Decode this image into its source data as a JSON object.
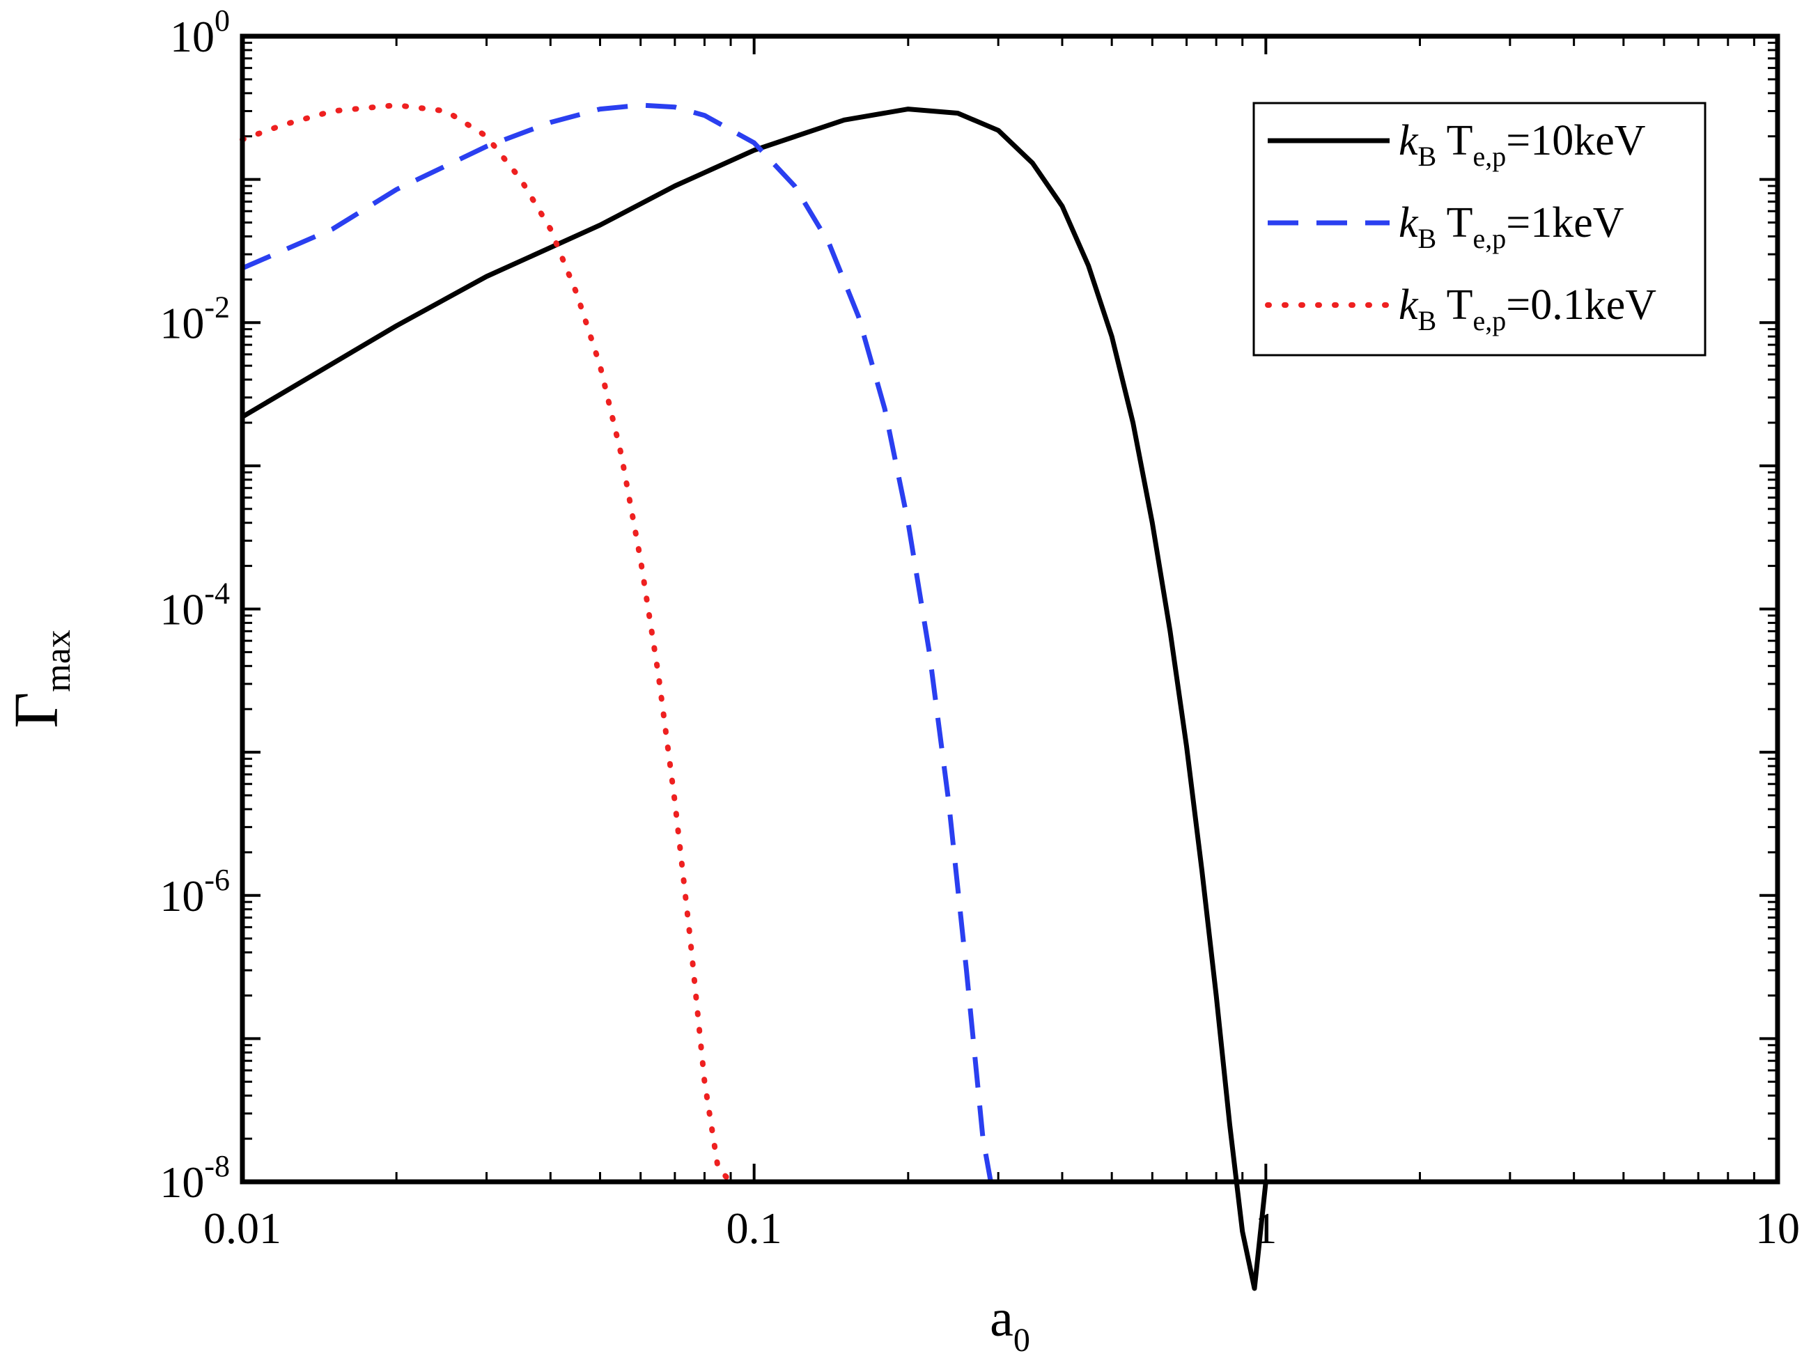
{
  "chart_data": {
    "type": "line",
    "xscale": "log",
    "yscale": "log",
    "xlim": [
      0.01,
      10
    ],
    "ylim": [
      1e-08,
      1
    ],
    "x_ticks": [
      "0.01",
      "0.1",
      "1",
      "10"
    ],
    "y_ticks": [
      {
        "base": "10",
        "exp": "0"
      },
      {
        "base": "10",
        "exp": "-2"
      },
      {
        "base": "10",
        "exp": "-4"
      },
      {
        "base": "10",
        "exp": "-6"
      },
      {
        "base": "10",
        "exp": "-8"
      }
    ],
    "xlabel": {
      "main": "a",
      "sub": "0"
    },
    "ylabel": {
      "main": "Γ",
      "sub": "max"
    },
    "legend_position": "top-right",
    "grid": false,
    "series": [
      {
        "name": "k_B T_e,p =10keV",
        "legend": {
          "k": "k",
          "k_sub": "B",
          "t": " T",
          "t_sub": "e,p",
          "rest": "=10keV"
        },
        "color": "#000000",
        "style": "solid",
        "points": [
          [
            0.01,
            0.0022
          ],
          [
            0.02,
            0.0095
          ],
          [
            0.03,
            0.021
          ],
          [
            0.05,
            0.048
          ],
          [
            0.07,
            0.09
          ],
          [
            0.1,
            0.16
          ],
          [
            0.15,
            0.26
          ],
          [
            0.2,
            0.31
          ],
          [
            0.25,
            0.29
          ],
          [
            0.3,
            0.22
          ],
          [
            0.35,
            0.13
          ],
          [
            0.4,
            0.065
          ],
          [
            0.45,
            0.025
          ],
          [
            0.5,
            0.008
          ],
          [
            0.55,
            0.002
          ],
          [
            0.6,
            0.0004
          ],
          [
            0.65,
            7e-05
          ],
          [
            0.7,
            1.1e-05
          ],
          [
            0.75,
            1.5e-06
          ],
          [
            0.8,
            2e-07
          ],
          [
            0.85,
            2.5e-08
          ],
          [
            0.9,
            4.5e-09
          ],
          [
            0.95,
            1.8e-09
          ],
          [
            1.0,
            1e-08
          ]
        ]
      },
      {
        "name": "k_B T_e,p =1keV",
        "legend": {
          "k": "k",
          "k_sub": "B",
          "t": " T",
          "t_sub": "e,p",
          "rest": "=1keV"
        },
        "color": "#2a3ff0",
        "style": "dashed",
        "points": [
          [
            0.01,
            0.024
          ],
          [
            0.015,
            0.045
          ],
          [
            0.02,
            0.085
          ],
          [
            0.03,
            0.17
          ],
          [
            0.04,
            0.25
          ],
          [
            0.05,
            0.31
          ],
          [
            0.06,
            0.33
          ],
          [
            0.07,
            0.32
          ],
          [
            0.08,
            0.28
          ],
          [
            0.1,
            0.18
          ],
          [
            0.12,
            0.09
          ],
          [
            0.14,
            0.036
          ],
          [
            0.16,
            0.011
          ],
          [
            0.18,
            0.0025
          ],
          [
            0.2,
            0.0004
          ],
          [
            0.22,
            5e-05
          ],
          [
            0.24,
            4.5e-06
          ],
          [
            0.26,
            3e-07
          ],
          [
            0.28,
            2e-08
          ],
          [
            0.29,
            1e-08
          ]
        ]
      },
      {
        "name": "k_B T_e,p =0.1keV",
        "legend": {
          "k": "k",
          "k_sub": "B",
          "t": " T",
          "t_sub": "e,p",
          "rest": "=0.1keV"
        },
        "color": "#ee2020",
        "style": "dotted",
        "points": [
          [
            0.01,
            0.19
          ],
          [
            0.012,
            0.24
          ],
          [
            0.015,
            0.3
          ],
          [
            0.02,
            0.33
          ],
          [
            0.025,
            0.3
          ],
          [
            0.03,
            0.2
          ],
          [
            0.035,
            0.1
          ],
          [
            0.04,
            0.045
          ],
          [
            0.045,
            0.016
          ],
          [
            0.05,
            0.005
          ],
          [
            0.055,
            0.0012
          ],
          [
            0.06,
            0.00022
          ],
          [
            0.065,
            3.5e-05
          ],
          [
            0.07,
            4.5e-06
          ],
          [
            0.075,
            5e-07
          ],
          [
            0.08,
            5e-08
          ],
          [
            0.085,
            1.25e-08
          ],
          [
            0.09,
            1e-08
          ]
        ]
      }
    ]
  }
}
